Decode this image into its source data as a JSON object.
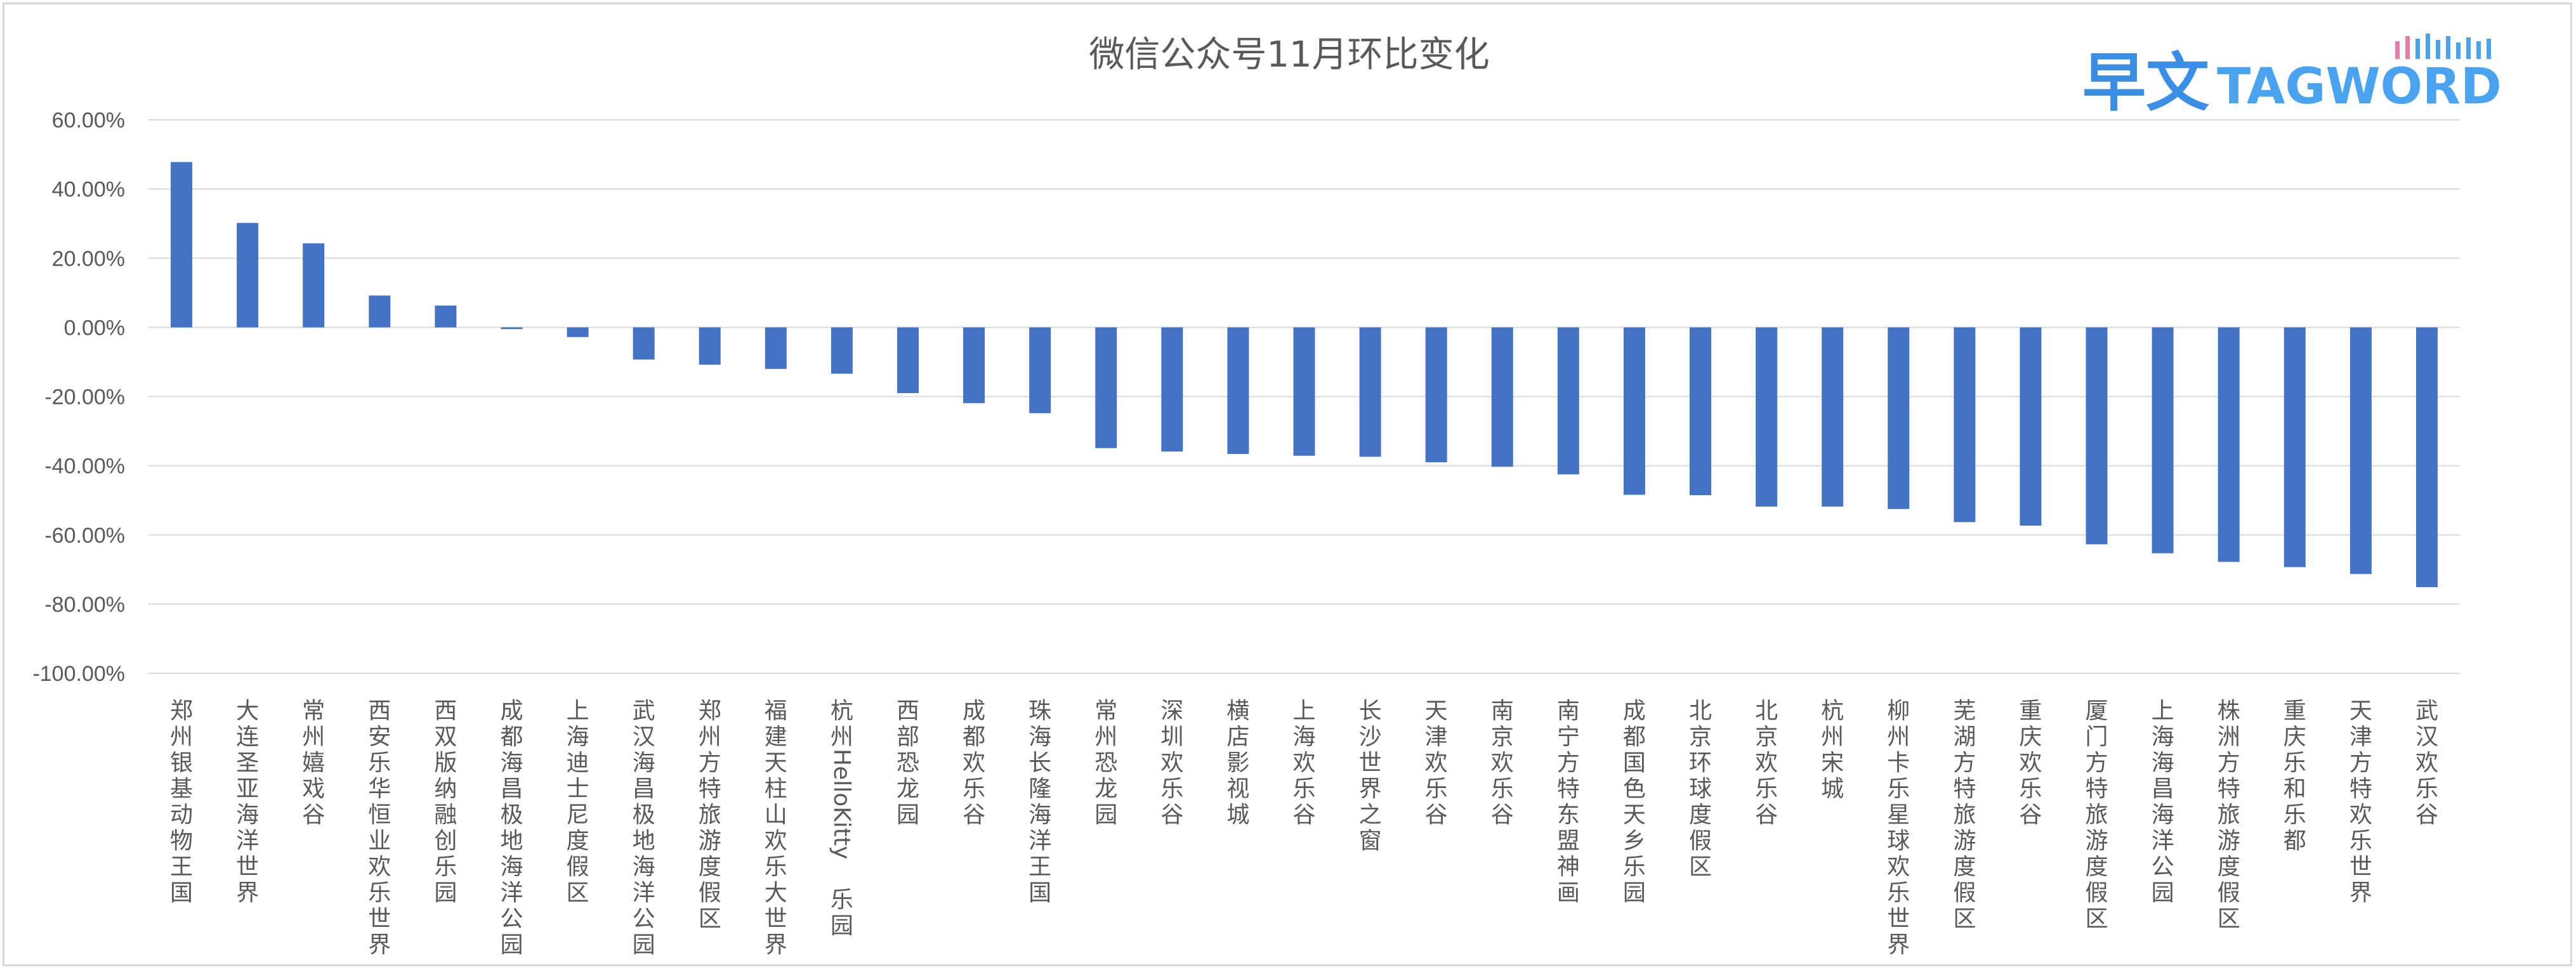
{
  "chart_data": {
    "type": "bar",
    "title": "微信公众号11月环比变化",
    "xlabel": "",
    "ylabel": "",
    "ylim": [
      -100,
      60
    ],
    "yticks": [
      60,
      40,
      20,
      0,
      -20,
      -40,
      -60,
      -80,
      -100
    ],
    "ytick_labels": [
      "60.00%",
      "40.00%",
      "20.00%",
      "0.00%",
      "-20.00%",
      "-40.00%",
      "-60.00%",
      "-80.00%",
      "-100.00%"
    ],
    "grid": true,
    "bar_color": "#4472c4",
    "categories": [
      "郑州银基动物王国",
      "大连圣亚海洋世界",
      "常州嬉戏谷",
      "西安乐华恒业欢乐世界",
      "西双版纳融创乐园",
      "成都海昌极地海洋公园",
      "上海迪士尼度假区",
      "武汉海昌极地海洋公园",
      "郑州方特旅游度假区",
      "福建天柱山欢乐大世界",
      "杭州HelloKitty乐园",
      "西部恐龙园",
      "成都欢乐谷",
      "珠海长隆海洋王国",
      "常州恐龙园",
      "深圳欢乐谷",
      "横店影视城",
      "上海欢乐谷",
      "长沙世界之窗",
      "天津欢乐谷",
      "南京欢乐谷",
      "南宁方特东盟神画",
      "成都国色天乡乐园",
      "北京环球度假区",
      "北京欢乐谷",
      "杭州宋城",
      "柳州卡乐星球欢乐世界",
      "芜湖方特旅游度假区",
      "重庆欢乐谷",
      "厦门方特旅游度假区",
      "上海海昌海洋公园",
      "株洲方特旅游度假区",
      "重庆乐和乐都",
      "天津方特欢乐世界",
      "武汉欢乐谷"
    ],
    "values": [
      47.8,
      30.2,
      24.3,
      9.2,
      6.3,
      -0.5,
      -2.8,
      -9.3,
      -10.8,
      -12.0,
      -13.4,
      -19.0,
      -21.9,
      -24.8,
      -34.9,
      -35.9,
      -36.6,
      -37.1,
      -37.4,
      -39.0,
      -40.3,
      -42.5,
      -48.4,
      -48.5,
      -51.8,
      -51.8,
      -52.5,
      -56.3,
      -57.3,
      -62.7,
      -65.3,
      -67.8,
      -69.3,
      -71.3,
      -75.1
    ]
  },
  "logo": {
    "cn_text": "早文",
    "en_text": "TAGWORD",
    "color": "#3a8ee6"
  }
}
